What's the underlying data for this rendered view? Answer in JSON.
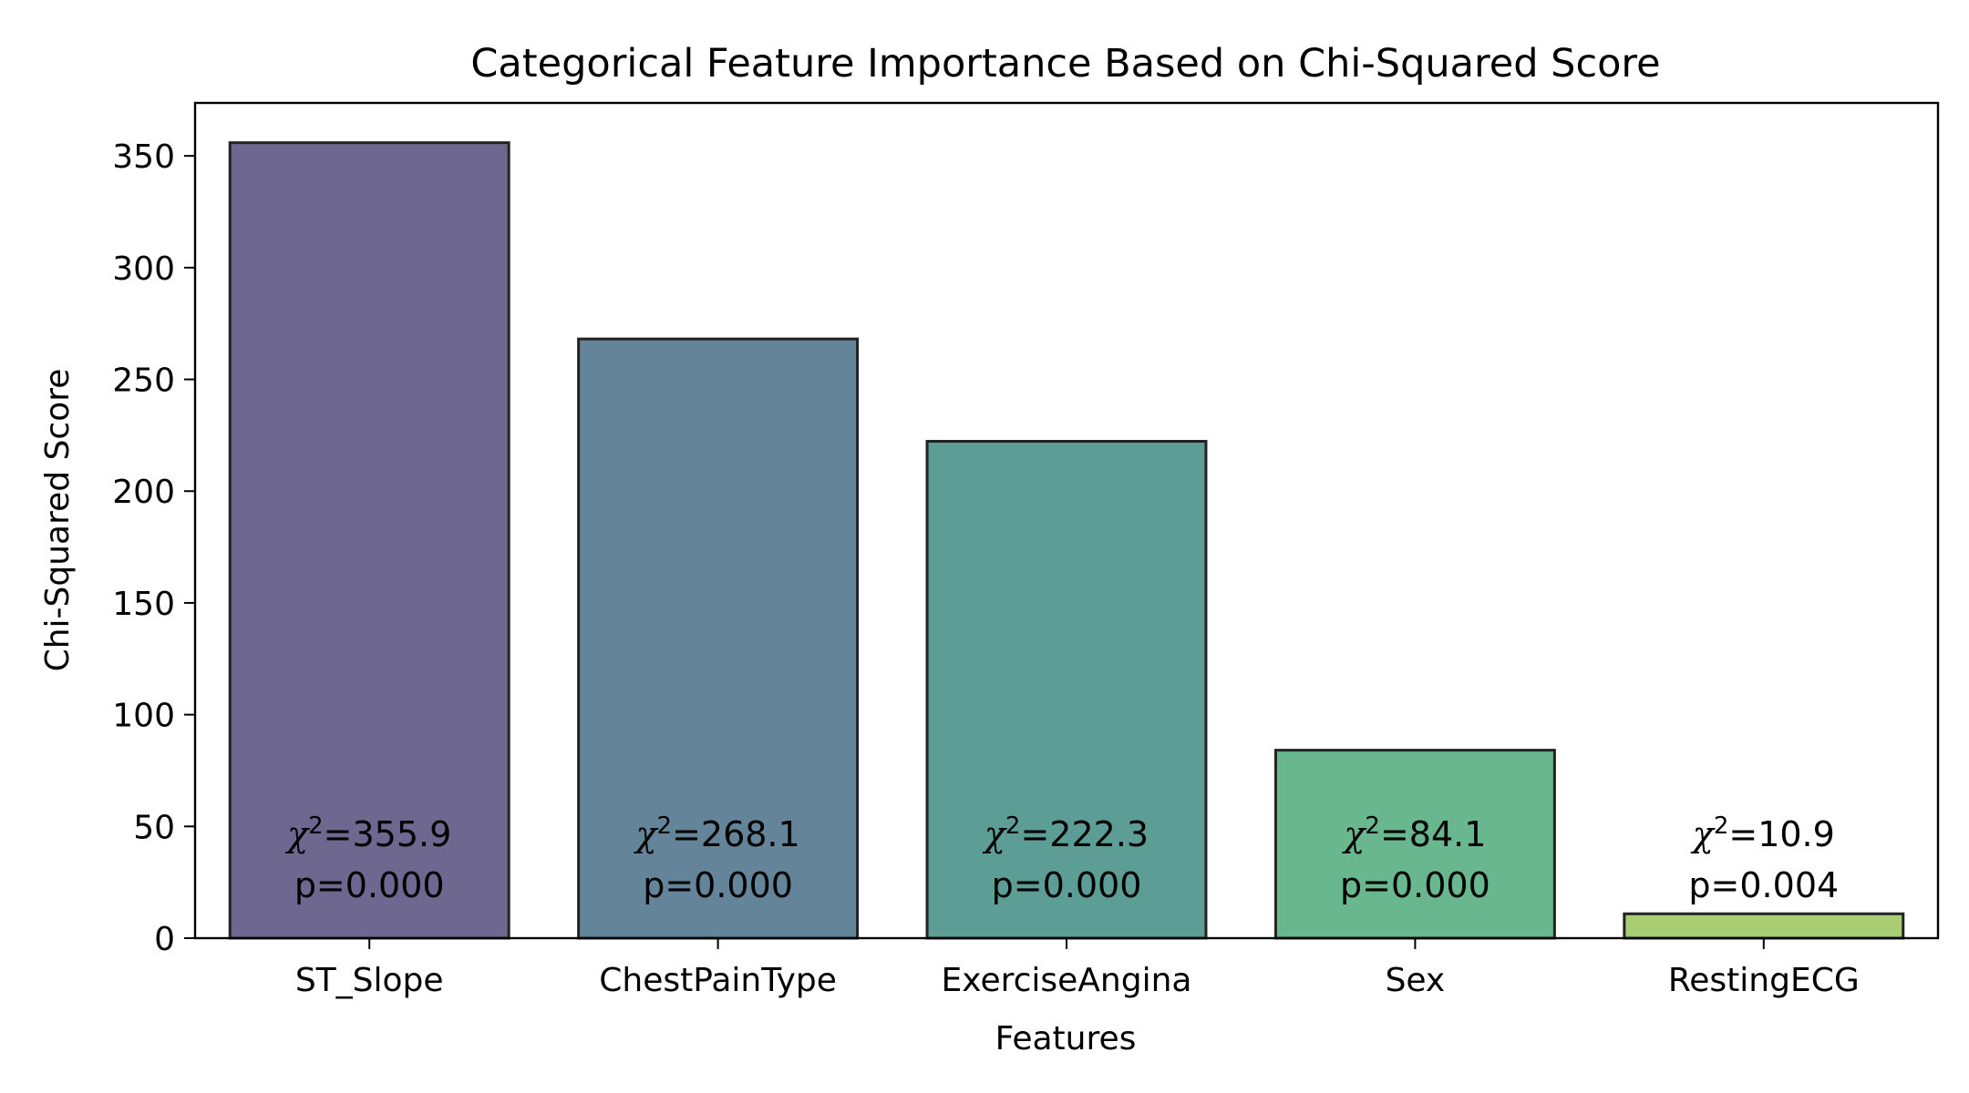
{
  "chart_data": {
    "type": "bar",
    "title": "Categorical Feature Importance Based on Chi-Squared Score",
    "xlabel": "Features",
    "ylabel": "Chi-Squared Score",
    "ylim": [
      0,
      373.7
    ],
    "yticks": [
      0,
      50,
      100,
      150,
      200,
      250,
      300,
      350
    ],
    "categories": [
      "ST_Slope",
      "ChestPainType",
      "ExerciseAngina",
      "Sex",
      "RestingECG"
    ],
    "values": [
      355.9,
      268.1,
      222.3,
      84.1,
      10.9
    ],
    "p_values": [
      "0.000",
      "0.000",
      "0.000",
      "0.000",
      "0.004"
    ],
    "colors": [
      "#6e6890",
      "#648599",
      "#5c9d96",
      "#69b78f",
      "#a8cd72"
    ],
    "edge_color": "#222222",
    "grid": false,
    "legend": "none"
  }
}
